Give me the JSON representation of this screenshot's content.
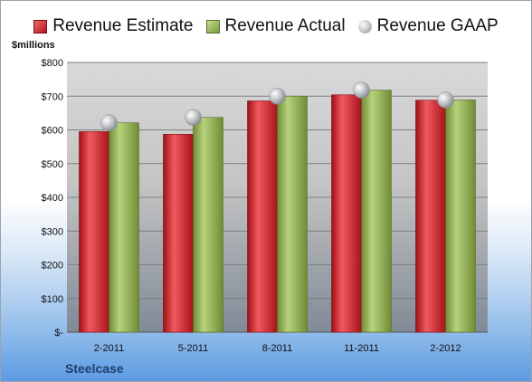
{
  "chart_data": {
    "type": "bar",
    "title": "",
    "ylabel": "$millions",
    "xlabel": "",
    "company": "Steelcase",
    "categories": [
      "2-2011",
      "5-2011",
      "8-2011",
      "11-2011",
      "2-2012"
    ],
    "ylim": [
      0,
      800
    ],
    "yticks": [
      0,
      100,
      200,
      300,
      400,
      500,
      600,
      700,
      800
    ],
    "ytick_labels": [
      "$-",
      "$100",
      "$200",
      "$300",
      "$400",
      "$500",
      "$600",
      "$700",
      "$800"
    ],
    "legend_position": "top",
    "grid": true,
    "series": [
      {
        "name": "Revenue Estimate",
        "type": "bar",
        "color": "#c8151d",
        "values": [
          595,
          587,
          686,
          704,
          688
        ]
      },
      {
        "name": "Revenue Actual",
        "type": "bar",
        "color": "#8fae4f",
        "values": [
          621,
          637,
          700,
          718,
          689
        ]
      },
      {
        "name": "Revenue GAAP",
        "type": "marker",
        "color": "#b9bcc0",
        "values": [
          621,
          637,
          700,
          718,
          689
        ]
      }
    ]
  }
}
